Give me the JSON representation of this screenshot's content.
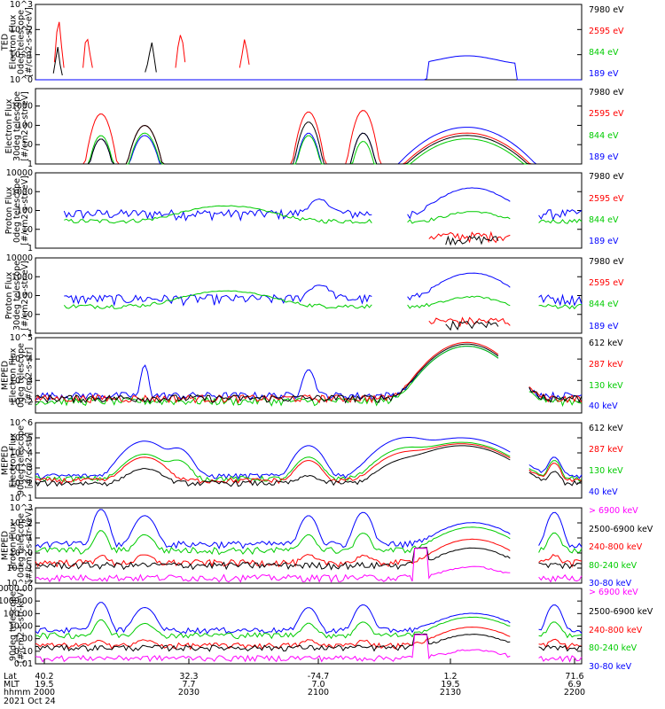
{
  "chart_data": [
    {
      "type": "line",
      "ylabel": [
        "TED",
        "Electron Flux",
        "0deg telescope",
        "[#/cm2-s-str-eV]"
      ],
      "log": true,
      "yticks": [
        {
          "v": 1,
          "label": "10^0"
        },
        {
          "v": 10,
          "label": "10^1"
        },
        {
          "v": 100,
          "label": "10^2"
        },
        {
          "v": 1000,
          "label": "10^3"
        }
      ],
      "ylim": [
        1,
        1000
      ],
      "series": [
        {
          "name": "7980 eV",
          "color": "#000000",
          "values": [
            0,
            0,
            0,
            0,
            0,
            0,
            0,
            0,
            1.8,
            6,
            20,
            4,
            1.5,
            0,
            0,
            0,
            0,
            0,
            0,
            0,
            0,
            0,
            0,
            0,
            0,
            0,
            0,
            0,
            0,
            0,
            0,
            0,
            0,
            0,
            0,
            0,
            0,
            0,
            0,
            0,
            0,
            0,
            0,
            0,
            0,
            0,
            0,
            0,
            0,
            2,
            4,
            12,
            30,
            8,
            2,
            0,
            0,
            0,
            0,
            0,
            0,
            0,
            0,
            0,
            0,
            0,
            0,
            0,
            0,
            0,
            0,
            0,
            0,
            0,
            0,
            0,
            0,
            0,
            0,
            0,
            0,
            0,
            0,
            0,
            0,
            0,
            0,
            0,
            0,
            0,
            0,
            0,
            0,
            0,
            0,
            0,
            0,
            0,
            0,
            0,
            0,
            0,
            0,
            0,
            0,
            0,
            0,
            0,
            0,
            0,
            0,
            0,
            0,
            0,
            0,
            0,
            0,
            0,
            0,
            0,
            0,
            0,
            0,
            0,
            0,
            0,
            0,
            0,
            0,
            0,
            0,
            0,
            0,
            0,
            0,
            0,
            0,
            0,
            0,
            0,
            0,
            0,
            0,
            0,
            0,
            0,
            0,
            0,
            0,
            0,
            0,
            0,
            0,
            0,
            0,
            0,
            0,
            0,
            0,
            0,
            0,
            0,
            0,
            0,
            0,
            0,
            0,
            0,
            0,
            0,
            0,
            0,
            0,
            0,
            0,
            0,
            0,
            0,
            0,
            0,
            0,
            0,
            0,
            0,
            0,
            0,
            0,
            0,
            0,
            0,
            0,
            0,
            0,
            0,
            0,
            0,
            0,
            0,
            0,
            0,
            0,
            0,
            0,
            0,
            0,
            0,
            0,
            0,
            0,
            0,
            0,
            0,
            0,
            0,
            0,
            0,
            0,
            0,
            0,
            0,
            0,
            0,
            0,
            0,
            0,
            0,
            0,
            0,
            0,
            0,
            0,
            0,
            0,
            0,
            0,
            0,
            0,
            0,
            0,
            0,
            0,
            0,
            0,
            0,
            0
          ]
        },
        {
          "name": "2595 eV",
          "color": "#ff0000",
          "values": [
            0,
            0,
            0,
            0,
            0,
            0,
            0,
            0,
            5,
            80,
            200,
            20,
            3,
            0,
            0,
            0,
            0,
            0,
            0,
            0,
            3,
            30,
            40,
            10,
            3,
            0,
            0,
            0,
            0,
            0,
            0,
            0,
            0,
            0,
            0,
            0,
            0,
            0,
            0,
            0,
            0,
            0,
            0,
            0,
            0,
            0,
            0,
            0,
            0,
            0,
            0,
            0,
            0,
            0,
            0,
            0,
            0,
            0,
            0,
            3,
            20,
            60,
            30,
            5,
            0,
            0,
            0,
            0,
            0,
            0,
            0,
            0,
            0,
            0,
            0,
            0,
            0,
            0,
            0,
            0,
            0,
            0,
            0,
            0,
            0,
            0,
            3,
            10,
            40,
            15,
            4,
            0,
            0,
            0,
            0,
            0,
            0,
            0,
            0,
            0,
            0,
            0,
            0,
            0,
            0,
            0,
            0,
            0,
            0,
            0,
            0,
            0,
            0,
            0,
            0,
            0,
            0,
            0,
            0,
            0,
            0,
            0,
            0,
            0,
            0,
            0,
            0,
            0,
            0,
            0,
            0,
            0,
            0,
            0,
            0,
            0,
            0,
            0,
            0,
            0,
            0,
            0,
            0,
            0,
            0,
            0,
            0,
            0,
            0,
            0,
            0,
            0,
            0,
            0,
            0,
            0,
            0,
            0,
            0,
            0,
            0,
            0,
            0,
            0,
            0,
            0,
            0,
            0,
            0,
            0,
            0,
            0,
            0,
            0,
            0,
            0,
            0,
            0,
            0,
            0,
            0,
            0,
            0,
            0,
            0,
            0,
            0,
            0,
            0,
            0,
            0,
            0,
            0,
            0,
            0,
            0,
            0,
            0,
            0,
            0,
            0,
            0,
            0,
            0,
            0,
            0,
            0,
            0,
            0,
            0,
            0,
            0,
            0,
            0,
            0,
            0,
            0,
            0,
            0,
            0,
            0,
            0,
            0,
            0,
            0,
            0,
            0,
            0,
            0,
            0,
            0
          ]
        },
        {
          "name": "844 eV",
          "color": "#00cc00",
          "values": [
            0,
            0,
            0,
            0,
            0,
            0,
            0,
            0,
            0,
            0,
            0,
            0,
            0,
            0,
            0,
            0,
            0,
            0,
            0,
            0,
            0,
            0,
            0,
            0,
            0,
            0,
            0,
            0,
            0,
            0,
            0,
            0,
            0,
            0,
            0,
            0,
            0,
            0,
            0,
            0,
            0,
            0,
            0,
            0,
            0,
            0,
            0,
            0,
            0,
            0,
            0,
            0,
            0,
            0,
            0,
            0,
            0,
            0,
            0,
            0,
            0,
            0,
            0,
            0,
            0,
            0,
            0,
            0,
            0,
            0,
            0,
            0,
            0,
            0,
            0,
            0,
            0,
            0,
            0,
            0,
            0,
            0,
            0,
            0,
            0,
            0,
            0,
            0,
            0,
            0,
            0,
            0,
            0,
            0,
            0,
            0,
            0,
            0,
            0,
            0,
            0,
            0,
            0,
            0,
            0,
            0,
            0,
            0,
            0,
            0,
            0,
            0,
            0,
            0,
            0,
            0,
            0,
            0,
            0,
            0,
            0,
            0,
            0,
            0,
            0,
            0,
            0,
            0,
            0,
            0,
            0,
            0,
            0,
            0,
            0,
            0,
            0,
            0,
            0,
            0,
            0,
            0,
            0,
            0,
            0,
            0,
            0,
            0,
            0,
            0,
            0,
            0,
            0,
            0,
            0,
            0,
            0,
            0,
            0,
            0,
            0,
            0,
            0,
            0,
            0,
            0,
            0,
            0,
            0,
            0,
            0,
            0,
            0,
            0,
            0,
            0,
            0,
            0,
            0,
            0,
            0,
            0,
            0,
            0,
            0,
            0,
            0,
            0,
            0,
            0,
            0,
            0,
            0,
            0,
            0,
            0,
            0,
            0,
            0,
            0,
            0,
            0,
            0,
            0,
            0,
            0,
            0,
            0,
            0,
            0,
            0,
            0,
            0,
            0,
            0,
            0,
            0,
            0,
            0,
            0,
            0,
            0,
            0,
            0,
            0,
            0,
            0,
            0,
            0,
            0,
            0,
            0,
            0,
            0,
            0,
            0,
            0,
            0,
            0,
            0,
            0
          ]
        },
        {
          "name": "189 eV",
          "color": "#0000ff",
          "values": []
        }
      ]
    },
    {
      "type": "line",
      "ylabel": [
        "Electron Flux",
        "30deg telescope",
        "[#/cm2-s-str-eV]"
      ],
      "log": true,
      "yticks": [
        {
          "v": 1,
          "label": "1"
        },
        {
          "v": 10,
          "label": "10"
        },
        {
          "v": 100,
          "label": "100"
        },
        {
          "v": 1000,
          "label": "1000"
        }
      ],
      "ylim": [
        1,
        8000
      ],
      "series": [
        {
          "name": "7980 eV",
          "color": "#000000",
          "values": []
        },
        {
          "name": "2595 eV",
          "color": "#ff0000",
          "values": []
        },
        {
          "name": "844 eV",
          "color": "#00cc00",
          "values": []
        },
        {
          "name": "189 eV",
          "color": "#0000ff",
          "values": []
        }
      ]
    },
    {
      "type": "line",
      "ylabel": [
        "Proton Flux",
        "0deg telescope",
        "[#/cm2-s-str-eV]"
      ],
      "log": true,
      "yticks": [
        {
          "v": 1,
          "label": "1"
        },
        {
          "v": 10,
          "label": "10"
        },
        {
          "v": 100,
          "label": "100"
        },
        {
          "v": 1000,
          "label": "1000"
        },
        {
          "v": 10000,
          "label": "10000"
        }
      ],
      "ylim": [
        1,
        10000
      ],
      "series": [
        {
          "name": "7980 eV",
          "color": "#000000",
          "values": []
        },
        {
          "name": "2595 eV",
          "color": "#ff0000",
          "values": []
        },
        {
          "name": "844 eV",
          "color": "#00cc00",
          "values": []
        },
        {
          "name": "189 eV",
          "color": "#0000ff",
          "values": []
        }
      ]
    },
    {
      "type": "line",
      "ylabel": [
        "Proton Flux",
        "30deg telescope",
        "[#/cm2-s-str-eV]"
      ],
      "log": true,
      "yticks": [
        {
          "v": 1,
          "label": "1"
        },
        {
          "v": 10,
          "label": "10"
        },
        {
          "v": 100,
          "label": "100"
        },
        {
          "v": 1000,
          "label": "1000"
        },
        {
          "v": 10000,
          "label": "10000"
        }
      ],
      "ylim": [
        1,
        10000
      ],
      "series": [
        {
          "name": "7980 eV",
          "color": "#000000",
          "values": []
        },
        {
          "name": "2595 eV",
          "color": "#ff0000",
          "values": []
        },
        {
          "name": "844 eV",
          "color": "#00cc00",
          "values": []
        },
        {
          "name": "189 eV",
          "color": "#0000ff",
          "values": []
        }
      ]
    },
    {
      "type": "line",
      "ylabel": [
        "MEPED",
        "Electron Flux",
        "0deg telescope",
        "[#/cm2-s-str]"
      ],
      "log": true,
      "yticks": [
        {
          "v": 100,
          "label": "10^2"
        },
        {
          "v": 1000,
          "label": "10^3"
        },
        {
          "v": 10000,
          "label": "10^4"
        },
        {
          "v": 100000,
          "label": "10^5"
        }
      ],
      "ylim": [
        30,
        100000
      ],
      "series": [
        {
          "name": "612 keV",
          "color": "#000000",
          "values": []
        },
        {
          "name": "287 keV",
          "color": "#ff0000",
          "values": []
        },
        {
          "name": "130 keV",
          "color": "#00cc00",
          "values": []
        },
        {
          "name": "40 keV",
          "color": "#0000ff",
          "values": []
        }
      ]
    },
    {
      "type": "line",
      "ylabel": [
        "MEPED",
        "Electron Flux",
        "90deg telescope",
        "[#/cm2-s-str]"
      ],
      "log": true,
      "yticks": [
        {
          "v": 10,
          "label": "10^1"
        },
        {
          "v": 100,
          "label": "10^2"
        },
        {
          "v": 1000,
          "label": "10^3"
        },
        {
          "v": 10000,
          "label": "10^4"
        },
        {
          "v": 100000,
          "label": "10^5"
        },
        {
          "v": 1000000,
          "label": "10^6"
        }
      ],
      "ylim": [
        10,
        1000000
      ],
      "series": [
        {
          "name": "612 keV",
          "color": "#000000",
          "values": []
        },
        {
          "name": "287 keV",
          "color": "#ff0000",
          "values": []
        },
        {
          "name": "130 keV",
          "color": "#00cc00",
          "values": []
        },
        {
          "name": "40 keV",
          "color": "#0000ff",
          "values": []
        }
      ]
    },
    {
      "type": "line",
      "ylabel": [
        "MEPED",
        "Proton Flux",
        "0deg telescope",
        "[#/cm2-s-str-keV]"
      ],
      "log": true,
      "yticks": [
        {
          "v": 0.01,
          "label": "10^-2"
        },
        {
          "v": 0.1,
          "label": "10^-1"
        },
        {
          "v": 1,
          "label": "10^0"
        },
        {
          "v": 10,
          "label": "10^1"
        },
        {
          "v": 100,
          "label": "10^2"
        },
        {
          "v": 1000,
          "label": "10^3"
        }
      ],
      "ylim": [
        0.01,
        1000
      ],
      "series": [
        {
          "name": "> 6900 keV",
          "color": "#ff00ff",
          "values": []
        },
        {
          "name": "2500-6900 keV",
          "color": "#000000",
          "values": []
        },
        {
          "name": "240-800 keV",
          "color": "#ff0000",
          "values": []
        },
        {
          "name": "80-240 keV",
          "color": "#00cc00",
          "values": []
        },
        {
          "name": "30-80 keV",
          "color": "#0000ff",
          "values": []
        }
      ]
    },
    {
      "type": "line",
      "ylabel": [
        "90deg telescope",
        "[#/cm2-s-str-keV]"
      ],
      "log": true,
      "yticks": [
        {
          "v": 0.01,
          "label": "0.01"
        },
        {
          "v": 0.1,
          "label": "0.10"
        },
        {
          "v": 1,
          "label": "1.00"
        },
        {
          "v": 10,
          "label": "10.00"
        },
        {
          "v": 100,
          "label": "100.00"
        },
        {
          "v": 1000,
          "label": "1000.00"
        },
        {
          "v": 10000,
          "label": "10000.00"
        }
      ],
      "ylim": [
        0.01,
        10000
      ],
      "series": [
        {
          "name": "> 6900 keV",
          "color": "#ff00ff",
          "values": []
        },
        {
          "name": "2500-6900 keV",
          "color": "#000000",
          "values": []
        },
        {
          "name": "240-800 keV",
          "color": "#ff0000",
          "values": []
        },
        {
          "name": "80-240 keV",
          "color": "#00cc00",
          "values": []
        },
        {
          "name": "30-80 keV",
          "color": "#0000ff",
          "values": []
        }
      ]
    }
  ],
  "x_axis": {
    "row_labels": [
      "Lat",
      "MLT",
      "hhmm"
    ],
    "columns": [
      {
        "lat": "40.2",
        "mlt": "19.5",
        "hhmm": "2000"
      },
      {
        "lat": "32.3",
        "mlt": "7.7",
        "hhmm": "2030"
      },
      {
        "lat": "-74.7",
        "mlt": "7.0",
        "hhmm": "2100"
      },
      {
        "lat": "1.2",
        "mlt": "19.5",
        "hhmm": "2130"
      },
      {
        "lat": "71.6",
        "mlt": "6.9",
        "hhmm": "2200"
      }
    ],
    "date": "2021 Oct 24"
  }
}
